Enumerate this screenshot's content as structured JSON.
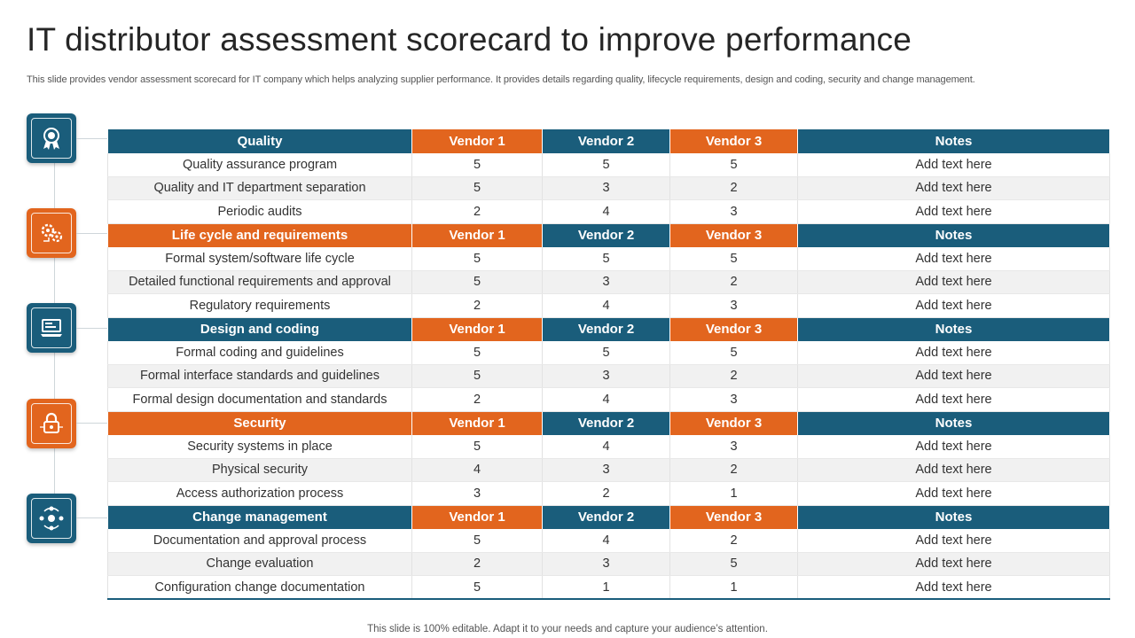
{
  "title": "IT distributor assessment scorecard to improve performance",
  "subtitle": "This slide provides vendor assessment scorecard for IT company which helps analyzing supplier performance. It provides details regarding quality, lifecycle requirements, design and coding, security and change management.",
  "footer": "This slide is 100% editable. Adapt it to your needs and capture your audience’s attention.",
  "colors": {
    "blue": "#1a5d7b",
    "orange": "#e2651e"
  },
  "icons": [
    "award-icon",
    "process-gears-icon",
    "laptop-code-icon",
    "security-lock-icon",
    "change-cycle-icon"
  ],
  "sections": [
    {
      "header": {
        "category": "Quality",
        "vendor1": "Vendor 1",
        "vendor2": "Vendor 2",
        "vendor3": "Vendor 3",
        "notes": "Notes"
      },
      "rows": [
        {
          "item": "Quality assurance program",
          "v1": "5",
          "v2": "5",
          "v3": "5",
          "note": "Add text here"
        },
        {
          "item": "Quality and IT department separation",
          "v1": "5",
          "v2": "3",
          "v3": "2",
          "note": "Add text here"
        },
        {
          "item": "Periodic audits",
          "v1": "2",
          "v2": "4",
          "v3": "3",
          "note": "Add text here"
        }
      ]
    },
    {
      "header": {
        "category": "Life cycle and requirements",
        "vendor1": "Vendor 1",
        "vendor2": "Vendor 2",
        "vendor3": "Vendor 3",
        "notes": "Notes"
      },
      "rows": [
        {
          "item": "Formal system/software life cycle",
          "v1": "5",
          "v2": "5",
          "v3": "5",
          "note": "Add text here"
        },
        {
          "item": "Detailed functional requirements and approval",
          "v1": "5",
          "v2": "3",
          "v3": "2",
          "note": "Add text here"
        },
        {
          "item": "Regulatory requirements",
          "v1": "2",
          "v2": "4",
          "v3": "3",
          "note": "Add text here"
        }
      ]
    },
    {
      "header": {
        "category": "Design and coding",
        "vendor1": "Vendor 1",
        "vendor2": "Vendor 2",
        "vendor3": "Vendor 3",
        "notes": "Notes"
      },
      "rows": [
        {
          "item": "Formal coding and guidelines",
          "v1": "5",
          "v2": "5",
          "v3": "5",
          "note": "Add text here"
        },
        {
          "item": "Formal interface standards and guidelines",
          "v1": "5",
          "v2": "3",
          "v3": "2",
          "note": "Add text here"
        },
        {
          "item": "Formal design documentation and standards",
          "v1": "2",
          "v2": "4",
          "v3": "3",
          "note": "Add text here"
        }
      ]
    },
    {
      "header": {
        "category": "Security",
        "vendor1": "Vendor 1",
        "vendor2": "Vendor 2",
        "vendor3": "Vendor 3",
        "notes": "Notes"
      },
      "rows": [
        {
          "item": "Security systems in place",
          "v1": "5",
          "v2": "4",
          "v3": "3",
          "note": "Add text here"
        },
        {
          "item": "Physical security",
          "v1": "4",
          "v2": "3",
          "v3": "2",
          "note": "Add text here"
        },
        {
          "item": "Access authorization process",
          "v1": "3",
          "v2": "2",
          "v3": "1",
          "note": "Add text here"
        }
      ]
    },
    {
      "header": {
        "category": "Change management",
        "vendor1": "Vendor 1",
        "vendor2": "Vendor 2",
        "vendor3": "Vendor 3",
        "notes": "Notes"
      },
      "rows": [
        {
          "item": "Documentation and approval process",
          "v1": "5",
          "v2": "4",
          "v3": "2",
          "note": "Add text here"
        },
        {
          "item": "Change evaluation",
          "v1": "2",
          "v2": "3",
          "v3": "5",
          "note": "Add text here"
        },
        {
          "item": "Configuration change documentation",
          "v1": "5",
          "v2": "1",
          "v3": "1",
          "note": "Add text here"
        }
      ]
    }
  ]
}
